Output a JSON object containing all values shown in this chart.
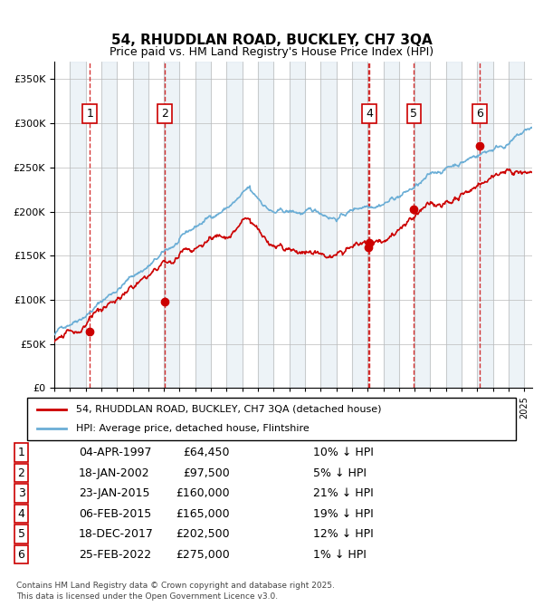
{
  "title": "54, RHUDDLAN ROAD, BUCKLEY, CH7 3QA",
  "subtitle": "Price paid vs. HM Land Registry's House Price Index (HPI)",
  "legend_line1": "54, RHUDDLAN ROAD, BUCKLEY, CH7 3QA (detached house)",
  "legend_line2": "HPI: Average price, detached house, Flintshire",
  "footer1": "Contains HM Land Registry data © Crown copyright and database right 2025.",
  "footer2": "This data is licensed under the Open Government Licence v3.0.",
  "transactions": [
    {
      "num": 1,
      "date": "1997-04-04",
      "price": 64450,
      "pct": "10%",
      "x_year": 1997.26
    },
    {
      "num": 2,
      "date": "2002-01-18",
      "price": 97500,
      "pct": "5%",
      "x_year": 2002.05
    },
    {
      "num": 3,
      "date": "2015-01-23",
      "price": 160000,
      "pct": "21%",
      "x_year": 2015.06
    },
    {
      "num": 4,
      "date": "2015-02-06",
      "price": 165000,
      "pct": "19%",
      "x_year": 2015.1
    },
    {
      "num": 5,
      "date": "2017-12-18",
      "price": 202500,
      "pct": "12%",
      "x_year": 2017.96
    },
    {
      "num": 6,
      "date": "2022-02-25",
      "price": 275000,
      "pct": "1%",
      "x_year": 2022.15
    }
  ],
  "table_rows": [
    {
      "num": 1,
      "date_str": "04-APR-1997",
      "price_str": "£64,450",
      "pct_str": "10%"
    },
    {
      "num": 2,
      "date_str": "18-JAN-2002",
      "price_str": "£97,500",
      "pct_str": "5%"
    },
    {
      "num": 3,
      "date_str": "23-JAN-2015",
      "price_str": "£160,000",
      "pct_str": "21%"
    },
    {
      "num": 4,
      "date_str": "06-FEB-2015",
      "price_str": "£165,000",
      "pct_str": "19%"
    },
    {
      "num": 5,
      "date_str": "18-DEC-2017",
      "price_str": "£202,500",
      "pct_str": "12%"
    },
    {
      "num": 6,
      "date_str": "25-FEB-2022",
      "price_str": "£275,000",
      "pct_str": "1%"
    }
  ],
  "hpi_color": "#6baed6",
  "price_color": "#cc0000",
  "dashed_color": "#cc0000",
  "bg_stripe_color": "#dde8f0",
  "ylim": [
    0,
    370000
  ],
  "xlim_start": 1995.0,
  "xlim_end": 2025.5
}
